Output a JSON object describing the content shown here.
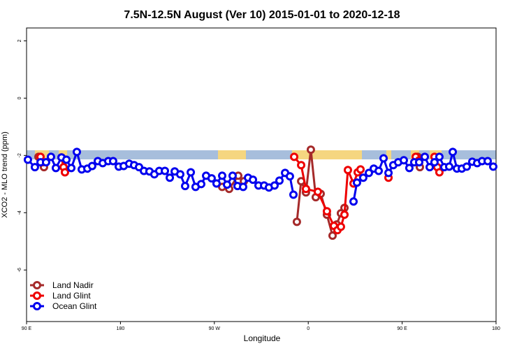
{
  "chart_data": {
    "type": "line",
    "title": "7.5N-12.5N August (Ver 10)   2015-01-01 to 2020-12-18",
    "x_label": "Longitude",
    "y_label": "XCO2 - MLO trend (ppm)",
    "xlim": [
      90,
      540
    ],
    "ylim": [
      -7.8,
      2.45
    ],
    "xticks": [
      {
        "value": 90,
        "label": "90 E"
      },
      {
        "value": 180,
        "label": "180"
      },
      {
        "value": 270,
        "label": "90 W"
      },
      {
        "value": 360,
        "label": "0"
      },
      {
        "value": 450,
        "label": "90 E"
      },
      {
        "value": 540,
        "label": "180"
      }
    ],
    "yticks": [
      2,
      0,
      -2,
      -4,
      -6
    ],
    "legend": "bottomleft",
    "series": [
      {
        "name": "Land Nadir",
        "color": "#a52a2a",
        "x": [
          101.4,
          106.7,
          200,
          277.5,
          284.2,
          292.9,
          298.3,
          320,
          349.1,
          353.2,
          357.8,
          362.5,
          367.2,
          371.9,
          377.9,
          383.3,
          387.3,
          391.3,
          394.7,
          430,
          465.0,
          467.0
        ],
        "values": [
          -2.05,
          -2.41,
          null,
          -3.1,
          -3.17,
          -2.71,
          -2.9,
          null,
          -4.32,
          -2.9,
          -3.29,
          -1.8,
          -3.46,
          -3.34,
          -4.07,
          -4.8,
          -4.41,
          -4.02,
          -3.83,
          null,
          -2.05,
          -2.41
        ]
      },
      {
        "name": "Land Glint",
        "color": "#ee0000",
        "x": [
          103.4,
          105.4,
          115,
          123.5,
          125.5,
          126.8,
          250,
          346.5,
          353.2,
          357.8,
          369.2,
          377.9,
          384.6,
          388.0,
          391.3,
          394.7,
          398.0,
          403.4,
          407.4,
          410.1,
          420,
          436.9,
          450,
          463.0,
          466.3,
          475,
          481.0,
          483.7,
          485.7
        ],
        "values": [
          -2.05,
          -2.24,
          null,
          -2.07,
          -2.41,
          -2.59,
          null,
          -2.05,
          -2.34,
          -3.17,
          -3.27,
          -3.95,
          -4.46,
          -4.61,
          -4.49,
          -4.07,
          -2.51,
          -2.98,
          -2.59,
          -2.49,
          null,
          -2.78,
          null,
          -2.05,
          -2.17,
          null,
          -2.05,
          -2.41,
          -2.59
        ]
      },
      {
        "name": "Ocean Glint",
        "color": "#0000ee",
        "x": [
          91.3,
          98.0,
          103.4,
          108.7,
          113.4,
          118.1,
          123.5,
          128.2,
          132.9,
          138.2,
          142.9,
          148.3,
          152.9,
          158.3,
          163.0,
          168.3,
          173.0,
          178.4,
          183.1,
          188.4,
          193.1,
          197.8,
          202.5,
          207.8,
          212.5,
          217.2,
          222.6,
          227.3,
          232.0,
          237.3,
          242.0,
          247.4,
          252.0,
          257.4,
          262.1,
          267.4,
          272.1,
          277.5,
          282.2,
          287.5,
          292.2,
          297.6,
          302.3,
          307.0,
          312.3,
          317.7,
          322.3,
          327.7,
          332.4,
          337.8,
          342.4,
          345.8,
          375,
          403.4,
          406.7,
          412.7,
          418.1,
          422.8,
          427.5,
          432.2,
          436.9,
          441.5,
          446.2,
          451.6,
          456.9,
          461.6,
          466.3,
          471.7,
          476.4,
          481.0,
          485.7,
          490.4,
          495.1,
          498.5,
          502.5,
          507.2,
          511.9,
          517.2,
          521.9,
          526.6,
          532.0,
          537.3
        ],
        "values": [
          -2.15,
          -2.41,
          -2.24,
          -2.24,
          -2.05,
          -2.44,
          -2.07,
          -2.15,
          -2.44,
          -1.88,
          -2.49,
          -2.46,
          -2.37,
          -2.2,
          -2.27,
          -2.2,
          -2.2,
          -2.39,
          -2.37,
          -2.29,
          -2.34,
          -2.41,
          -2.54,
          -2.56,
          -2.66,
          -2.54,
          -2.54,
          -2.78,
          -2.56,
          -2.66,
          -3.07,
          -2.59,
          -3.1,
          -3.0,
          -2.71,
          -2.8,
          -2.98,
          -2.71,
          -3.02,
          -2.71,
          -3.07,
          -3.1,
          -2.78,
          -2.85,
          -3.05,
          -3.05,
          -3.12,
          -3.05,
          -2.88,
          -2.61,
          -2.73,
          -3.37,
          null,
          -3.61,
          -2.95,
          -2.78,
          -2.61,
          -2.46,
          -2.54,
          -2.1,
          -2.61,
          -2.34,
          -2.24,
          -2.17,
          -2.44,
          -2.24,
          -2.24,
          -2.05,
          -2.41,
          -2.24,
          -2.05,
          -2.41,
          -2.39,
          -1.88,
          -2.46,
          -2.46,
          -2.39,
          -2.22,
          -2.27,
          -2.2,
          -2.2,
          -2.39
        ]
      }
    ]
  }
}
